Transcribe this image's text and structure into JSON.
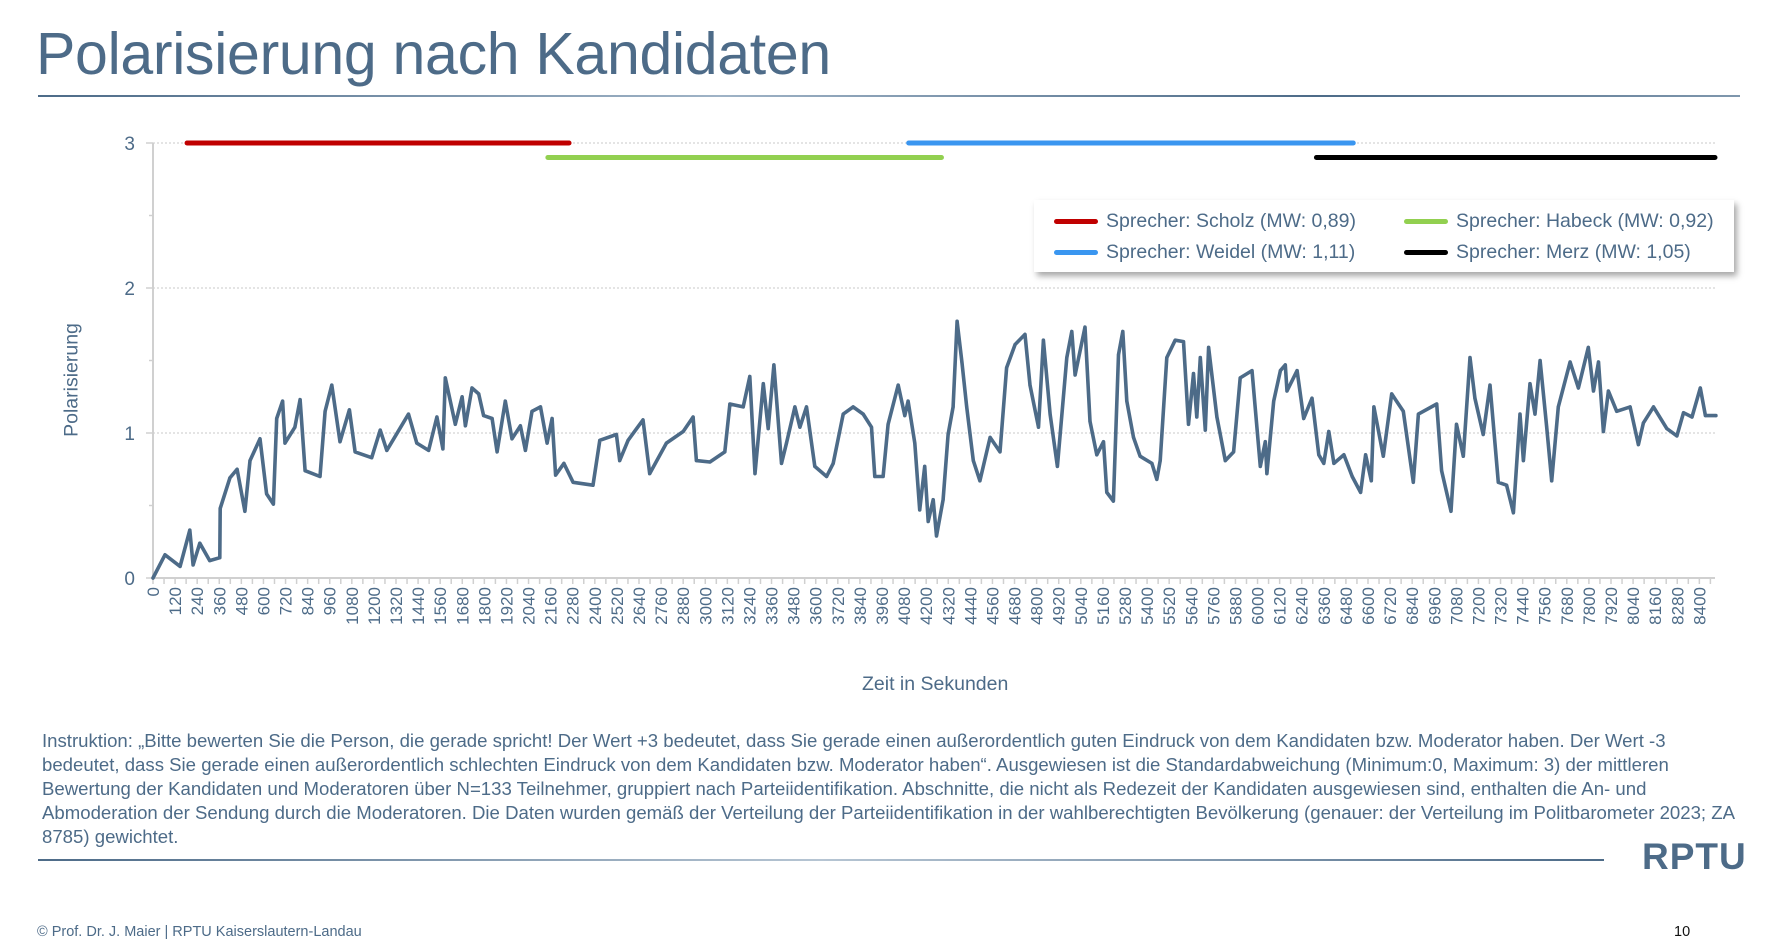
{
  "slide": {
    "title": "Polarisierung nach Kandidaten",
    "instruction_text": "Instruktion: „Bitte bewerten Sie die Person, die gerade spricht! Der Wert +3 bedeutet, dass Sie gerade einen außerordentlich guten Eindruck von dem Kandidaten bzw. Moderator haben. Der Wert -3 bedeutet, dass Sie gerade einen außerordentlich schlechten Eindruck von dem Kandidaten bzw. Moderator haben“. Ausgewiesen ist die Standardabweichung (Minimum:0, Maximum: 3) der mittleren Bewertung der Kandidaten und Moderatoren über N=133 Teilnehmer, gruppiert nach Parteiidentifikation. Abschnitte, die nicht als Redezeit der Kandidaten ausgewiesen sind, enthalten die An- und Abmoderation der Sendung durch die Moderatoren. Die Daten wurden gemäß der Verteilung der Parteiidentifikation in der wahlberechtigten Bevölkerung (genauer: der Verteilung im Politbarometer 2023; ZA 8785) gewichtet.",
    "logo_text": "RPTU",
    "footer": "© Prof. Dr. J. Maier | RPTU Kaiserslautern-Landau",
    "page_number": "10"
  },
  "colors": {
    "text": "#4d6b88",
    "line": "#4d6b88",
    "scholz": "#c00000",
    "habeck": "#92d050",
    "weidel": "#3a96f0",
    "merz": "#000000",
    "grid": "#c8c8c8",
    "axis": "#d0d0d0"
  },
  "chart_data": {
    "type": "line",
    "title": "Polarisierung nach Kandidaten",
    "xlabel": "Zeit in Sekunden",
    "ylabel": "Polarisierung",
    "xlim": [
      0,
      8490
    ],
    "ylim": [
      0,
      3
    ],
    "yticks": [
      0,
      1,
      2,
      3
    ],
    "yticks_labels": [
      "0",
      "1",
      "2",
      "3"
    ],
    "xticks_step": 120,
    "xticks_labels": [
      "0",
      "120",
      "240",
      "360",
      "480",
      "600",
      "720",
      "840",
      "960",
      "1080",
      "1200",
      "1320",
      "1440",
      "1560",
      "1680",
      "1800",
      "1920",
      "2040",
      "2160",
      "2280",
      "2400",
      "2520",
      "2640",
      "2760",
      "2880",
      "3000",
      "3120",
      "3240",
      "3360",
      "3480",
      "3600",
      "3720",
      "3840",
      "3960",
      "4080",
      "4200",
      "4320",
      "4440",
      "4560",
      "4680",
      "4800",
      "4920",
      "5040",
      "5160",
      "5280",
      "5400",
      "5520",
      "5640",
      "5760",
      "5880",
      "6000",
      "6120",
      "6240",
      "6360",
      "6480",
      "6600",
      "6720",
      "6840",
      "6960",
      "7080",
      "7200",
      "7320",
      "7440",
      "7560",
      "7680",
      "7800",
      "7920",
      "8040",
      "8160",
      "8280",
      "8400"
    ],
    "grid": "horizontal dotted",
    "legend_position": "top-right",
    "series": [
      {
        "name": "Polarisierung",
        "x": [
          0,
          65,
          147,
          200,
          218,
          254,
          308,
          363,
          365,
          418,
          457,
          499,
          527,
          581,
          617,
          654,
          672,
          704,
          717,
          771,
          799,
          826,
          907,
          935,
          971,
          1016,
          1067,
          1098,
          1188,
          1234,
          1270,
          1388,
          1433,
          1497,
          1542,
          1575,
          1588,
          1642,
          1679,
          1697,
          1733,
          1769,
          1796,
          1842,
          1869,
          1914,
          1950,
          1996,
          2023,
          2059,
          2105,
          2141,
          2168,
          2187,
          2232,
          2282,
          2390,
          2427,
          2517,
          2535,
          2581,
          2662,
          2698,
          2789,
          2880,
          2934,
          2952,
          3025,
          3106,
          3134,
          3206,
          3242,
          3270,
          3315,
          3342,
          3373,
          3414,
          3441,
          3487,
          3514,
          3550,
          3595,
          3659,
          3695,
          3749,
          3803,
          3858,
          3903,
          3921,
          3966,
          3993,
          4048,
          4084,
          4102,
          4138,
          4165,
          4192,
          4211,
          4238,
          4256,
          4292,
          4319,
          4346,
          4368,
          4394,
          4420,
          4456,
          4492,
          4547,
          4601,
          4637,
          4683,
          4737,
          4764,
          4810,
          4837,
          4873,
          4913,
          4964,
          4991,
          5009,
          5063,
          5090,
          5127,
          5163,
          5181,
          5217,
          5245,
          5268,
          5290,
          5326,
          5362,
          5426,
          5453,
          5471,
          5507,
          5553,
          5598,
          5625,
          5652,
          5670,
          5689,
          5716,
          5734,
          5779,
          5825,
          5870,
          5906,
          5970,
          6015,
          6042,
          6051,
          6088,
          6124,
          6151,
          6160,
          6215,
          6251,
          6296,
          6333,
          6360,
          6387,
          6415,
          6469,
          6514,
          6560,
          6587,
          6618,
          6632,
          6683,
          6729,
          6792,
          6846,
          6874,
          6973,
          7000,
          7051,
          7081,
          7118,
          7154,
          7181,
          7226,
          7263,
          7308,
          7353,
          7390,
          7426,
          7444,
          7480,
          7507,
          7535,
          7571,
          7598,
          7634,
          7698,
          7743,
          7797,
          7825,
          7852,
          7879,
          7906,
          7951,
          8024,
          8069,
          8096,
          8151,
          8223,
          8278,
          8314,
          8360,
          8405,
          8433,
          8490
        ],
        "y": [
          0.0,
          0.16,
          0.08,
          0.33,
          0.09,
          0.24,
          0.12,
          0.14,
          0.48,
          0.69,
          0.75,
          0.46,
          0.81,
          0.96,
          0.58,
          0.51,
          1.1,
          1.22,
          0.93,
          1.04,
          1.23,
          0.74,
          0.7,
          1.15,
          1.33,
          0.94,
          1.16,
          0.87,
          0.83,
          1.02,
          0.88,
          1.13,
          0.93,
          0.88,
          1.11,
          0.89,
          1.38,
          1.06,
          1.25,
          1.05,
          1.31,
          1.27,
          1.12,
          1.1,
          0.87,
          1.22,
          0.96,
          1.05,
          0.88,
          1.15,
          1.18,
          0.93,
          1.1,
          0.71,
          0.79,
          0.66,
          0.64,
          0.95,
          0.99,
          0.81,
          0.95,
          1.09,
          0.72,
          0.93,
          1.01,
          1.11,
          0.81,
          0.8,
          0.87,
          1.2,
          1.18,
          1.39,
          0.72,
          1.34,
          1.03,
          1.47,
          0.79,
          0.93,
          1.18,
          1.04,
          1.18,
          0.77,
          0.7,
          0.79,
          1.13,
          1.18,
          1.13,
          1.04,
          0.7,
          0.7,
          1.06,
          1.33,
          1.12,
          1.22,
          0.93,
          0.47,
          0.77,
          0.39,
          0.54,
          0.29,
          0.54,
          0.99,
          1.18,
          1.77,
          1.49,
          1.18,
          0.81,
          0.67,
          0.97,
          0.87,
          1.45,
          1.61,
          1.68,
          1.33,
          1.04,
          1.64,
          1.13,
          0.77,
          1.52,
          1.7,
          1.4,
          1.73,
          1.08,
          0.85,
          0.94,
          0.59,
          0.53,
          1.54,
          1.7,
          1.22,
          0.97,
          0.84,
          0.79,
          0.68,
          0.81,
          1.52,
          1.64,
          1.63,
          1.06,
          1.41,
          1.11,
          1.52,
          1.02,
          1.59,
          1.11,
          0.81,
          0.87,
          1.38,
          1.43,
          0.77,
          0.94,
          0.72,
          1.22,
          1.43,
          1.47,
          1.29,
          1.43,
          1.1,
          1.24,
          0.85,
          0.79,
          1.01,
          0.79,
          0.85,
          0.7,
          0.59,
          0.85,
          0.67,
          1.18,
          0.84,
          1.27,
          1.15,
          0.66,
          1.13,
          1.2,
          0.74,
          0.46,
          1.06,
          0.84,
          1.52,
          1.24,
          0.99,
          1.33,
          0.66,
          0.64,
          0.45,
          1.13,
          0.81,
          1.34,
          1.13,
          1.5,
          1.04,
          0.67,
          1.18,
          1.49,
          1.31,
          1.59,
          1.29,
          1.49,
          1.01,
          1.29,
          1.15,
          1.18,
          0.92,
          1.07,
          1.18,
          1.03,
          0.98,
          1.14,
          1.11,
          1.31,
          1.12,
          1.12
        ]
      }
    ],
    "speaker_segments": [
      {
        "name": "Sprecher: Scholz (MW: 0,89)",
        "color_key": "scholz",
        "start": 185,
        "end": 2260,
        "level": 3.0
      },
      {
        "name": "Sprecher: Habeck (MW: 0,92)",
        "color_key": "habeck",
        "start": 2145,
        "end": 4283,
        "level": 2.9
      },
      {
        "name": "Sprecher: Weidel (MW: 1,11)",
        "color_key": "weidel",
        "start": 4105,
        "end": 6520,
        "level": 3.0
      },
      {
        "name": "Sprecher: Merz (MW: 1,05)",
        "color_key": "merz",
        "start": 6320,
        "end": 8485,
        "level": 2.9
      }
    ]
  }
}
